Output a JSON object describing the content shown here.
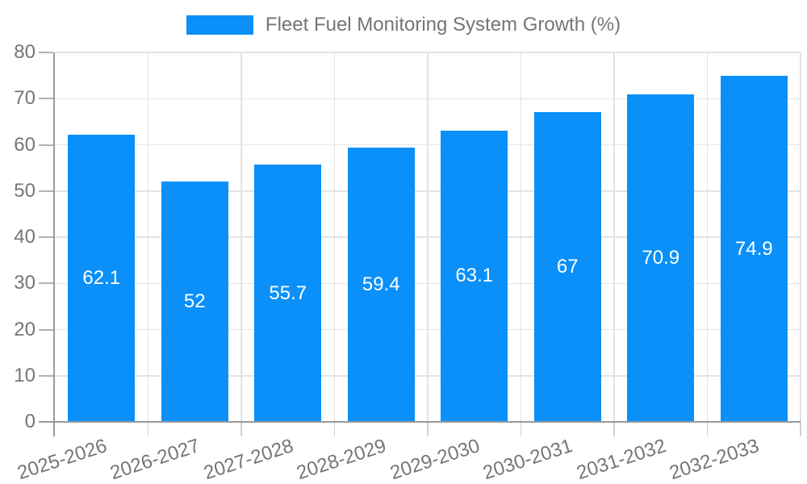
{
  "chart_data": {
    "type": "bar",
    "title": "Fleet Fuel Monitoring System Growth (%)",
    "legend": {
      "label": "Fleet Fuel Monitoring System Growth (%)",
      "position": "top-center",
      "swatch_color": "#0a90f8"
    },
    "categories": [
      "2025-2026",
      "2026-2027",
      "2027-2028",
      "2028-2029",
      "2029-2030",
      "2030-2031",
      "2031-2032",
      "2032-2033"
    ],
    "series": [
      {
        "name": "Fleet Fuel Monitoring System Growth (%)",
        "values": [
          62.1,
          52,
          55.7,
          59.4,
          63.1,
          67,
          70.9,
          74.9
        ],
        "color": "#0a90f8"
      }
    ],
    "value_labels": [
      "62.1",
      "52",
      "55.7",
      "59.4",
      "63.1",
      "67",
      "70.9",
      "74.9"
    ],
    "xlabel": "",
    "ylabel": "",
    "ylim": [
      0,
      80
    ],
    "yticks": [
      0,
      10,
      20,
      30,
      40,
      50,
      60,
      70,
      80
    ],
    "grid": true,
    "x_tick_rotation_deg": -18,
    "colors": {
      "bar": "#0a90f8",
      "value_label": "#ffffff",
      "axis_text": "#757575",
      "gridline": "#e3e3e3",
      "x_tick": "#cfcfcf",
      "y_tick": "#b3b3b3",
      "axis_line": "#9a9a9a",
      "background": "#ffffff"
    }
  }
}
